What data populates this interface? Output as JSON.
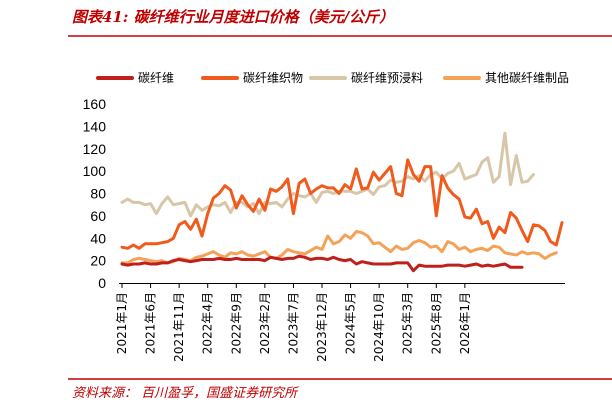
{
  "header": {
    "title": "图表41:  碳纤维行业月度进口价格（美元/公斤）"
  },
  "footer": {
    "source": "资料来源：  百川盈孚，国盛证券研究所"
  },
  "colors": {
    "brand": "#c00000",
    "series": [
      "#c0201c",
      "#f05a1c",
      "#d7c6a8",
      "#f5a259"
    ]
  },
  "chart_data": {
    "type": "line",
    "title": "",
    "xlabel": "",
    "ylabel": "",
    "ylim": [
      0,
      160
    ],
    "yticks": [
      0,
      20,
      40,
      60,
      80,
      100,
      120,
      140,
      160
    ],
    "grid": false,
    "legend_position": "top",
    "x_tick_labels": [
      "2021年1月",
      "2021年6月",
      "2021年11月",
      "2022年4月",
      "2022年9月",
      "2023年2月",
      "2023年7月",
      "2023年12月",
      "2024年5月",
      "2024年10月",
      "2025年3月",
      "2025年8月",
      "2026年1月"
    ],
    "series": [
      {
        "name": "碳纤维",
        "color": "#c0201c",
        "values": [
          17,
          16,
          17,
          17,
          18,
          17,
          17,
          18,
          18,
          20,
          21,
          20,
          19,
          20,
          21,
          21,
          21,
          22,
          21,
          21,
          22,
          21,
          21,
          21,
          21,
          20,
          23,
          22,
          21,
          22,
          22,
          24,
          23,
          21,
          22,
          22,
          21,
          23,
          21,
          20,
          21,
          17,
          19,
          18,
          17,
          17,
          17,
          17,
          18,
          18,
          18,
          11,
          16,
          15,
          15,
          15,
          15,
          16,
          16,
          16,
          15,
          16,
          17,
          15,
          16,
          15,
          16,
          17,
          14,
          14,
          14
        ]
      },
      {
        "name": "碳纤维织物",
        "color": "#f05a1c",
        "values": [
          32,
          31,
          34,
          31,
          35,
          35,
          35,
          36,
          37,
          40,
          52,
          55,
          48,
          57,
          42,
          62,
          76,
          80,
          87,
          83,
          67,
          78,
          70,
          64,
          75,
          65,
          84,
          82,
          86,
          93,
          62,
          89,
          93,
          80,
          84,
          87,
          85,
          85,
          80,
          88,
          84,
          102,
          84,
          85,
          99,
          92,
          98,
          104,
          80,
          78,
          110,
          97,
          91,
          104,
          104,
          60,
          96,
          85,
          79,
          75,
          59,
          58,
          66,
          53,
          55,
          40,
          50,
          45,
          63,
          58,
          47,
          37,
          52,
          51,
          47,
          37,
          34,
          54
        ]
      },
      {
        "name": "碳纤维预浸料",
        "color": "#d7c6a8",
        "values": [
          72,
          75,
          72,
          72,
          70,
          71,
          62,
          71,
          77,
          70,
          71,
          72,
          60,
          70,
          65,
          68,
          70,
          69,
          72,
          63,
          72,
          72,
          68,
          71,
          62,
          72,
          71,
          72,
          68,
          75,
          80,
          78,
          77,
          80,
          72,
          81,
          82,
          80,
          82,
          82,
          82,
          80,
          82,
          84,
          79,
          86,
          87,
          92,
          90,
          91,
          95,
          93,
          96,
          91,
          97,
          99,
          93,
          98,
          100,
          107,
          93,
          95,
          97,
          108,
          112,
          90,
          95,
          134,
          88,
          114,
          90,
          91,
          97
        ]
      },
      {
        "name": "其他碳纤维制品",
        "color": "#f5a259",
        "values": [
          18,
          18,
          21,
          22,
          21,
          20,
          19,
          20,
          18,
          19,
          22,
          21,
          20,
          23,
          24,
          26,
          28,
          25,
          23,
          27,
          26,
          28,
          25,
          24,
          26,
          28,
          23,
          22,
          25,
          30,
          28,
          27,
          26,
          29,
          32,
          30,
          42,
          35,
          37,
          43,
          40,
          46,
          45,
          42,
          35,
          36,
          32,
          28,
          33,
          30,
          31,
          36,
          38,
          36,
          32,
          33,
          28,
          37,
          35,
          30,
          32,
          28,
          30,
          31,
          29,
          33,
          32,
          27,
          26,
          25,
          28,
          26,
          27,
          26,
          22,
          25,
          27
        ]
      }
    ]
  }
}
